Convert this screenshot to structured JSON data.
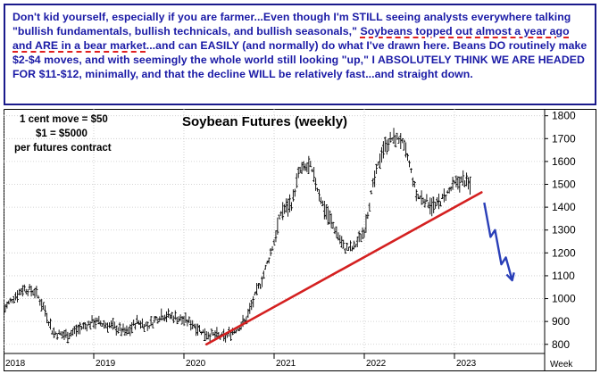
{
  "commentary": {
    "part1": "Don't kid yourself, especially if you are farmer...Even though I'm STILL seeing analysts everywhere talking \"bullish fundamentals, bullish technicals, and bullish seasonals,\" ",
    "highlight": "Soybeans topped out almost a year ago and ARE in a bear market",
    "part2": "...and can EASILY (and normally) do what I've drawn here. Beans DO routinely make $2-$4 moves, and with seemingly the whole world still looking \"up,\" I ABSOLUTELY THINK WE ARE HEADED FOR $11-$12, minimally, and that the decline WILL be relatively fast...and straight down."
  },
  "notes": {
    "line1": "1 cent move = $50",
    "line2": "$1 = $5000",
    "line3": "per futures contract"
  },
  "colors": {
    "border": "#1a1a8c",
    "text": "#1a1aa6",
    "trendline": "#d42020",
    "projection": "#2a3fb8",
    "bars": "#000000"
  },
  "chart_data": {
    "type": "bar",
    "title": "Soybean Futures (weekly)",
    "xlabel": "Week",
    "ylabel": "",
    "x_ticks": [
      "2018",
      "2019",
      "2020",
      "2021",
      "2022",
      "2023"
    ],
    "y_ticks": [
      "800",
      "900",
      "1000",
      "1100",
      "1200",
      "1300",
      "1400",
      "1500",
      "1600",
      "1700",
      "1800"
    ],
    "ylim": [
      760,
      1830
    ],
    "xlim": [
      2018.0,
      2024.0
    ],
    "grid": true,
    "price_anchors": {
      "x": [
        2018.0,
        2018.1,
        2018.22,
        2018.35,
        2018.45,
        2018.55,
        2018.7,
        2018.85,
        2019.0,
        2019.2,
        2019.37,
        2019.48,
        2019.6,
        2019.75,
        2019.9,
        2020.1,
        2020.22,
        2020.33,
        2020.45,
        2020.58,
        2020.68,
        2020.78,
        2020.88,
        2021.0,
        2021.08,
        2021.2,
        2021.28,
        2021.4,
        2021.55,
        2021.68,
        2021.78,
        2021.88,
        2022.0,
        2022.1,
        2022.2,
        2022.3,
        2022.4,
        2022.48,
        2022.58,
        2022.68,
        2022.78,
        2022.9,
        2023.0,
        2023.1,
        2023.18
      ],
      "y": [
        950,
        1000,
        1045,
        1030,
        960,
        850,
        840,
        870,
        900,
        880,
        850,
        900,
        880,
        930,
        920,
        890,
        850,
        840,
        830,
        870,
        900,
        1000,
        1100,
        1250,
        1380,
        1420,
        1560,
        1580,
        1400,
        1300,
        1220,
        1220,
        1300,
        1500,
        1650,
        1700,
        1700,
        1620,
        1450,
        1430,
        1400,
        1450,
        1500,
        1520,
        1490
      ]
    },
    "trendline": {
      "x": [
        2020.25,
        2023.3
      ],
      "y": [
        800,
        1465
      ]
    },
    "projection": {
      "x": [
        2023.33,
        2023.4,
        2023.45,
        2023.52,
        2023.57,
        2023.64
      ],
      "y": [
        1420,
        1270,
        1300,
        1150,
        1180,
        1080
      ]
    }
  }
}
